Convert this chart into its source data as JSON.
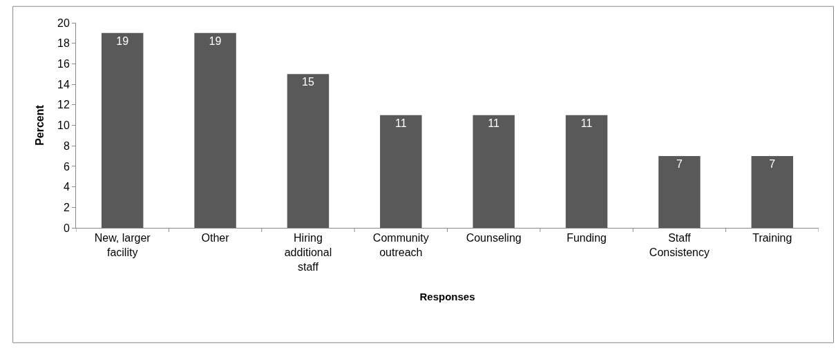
{
  "chart_data": {
    "type": "bar",
    "xlabel": "Responses",
    "ylabel": "Percent",
    "categories": [
      "New, larger facility",
      "Other",
      "Hiring additional staff",
      "Community outreach",
      "Counseling",
      "Funding",
      "Staff Consistency",
      "Training"
    ],
    "values": [
      19,
      19,
      15,
      11,
      11,
      11,
      7,
      7
    ],
    "color": "#595959",
    "ylim": [
      0,
      20
    ],
    "yticks": [
      0,
      2,
      4,
      6,
      8,
      10,
      12,
      14,
      16,
      18,
      20
    ],
    "data_labels": true
  }
}
